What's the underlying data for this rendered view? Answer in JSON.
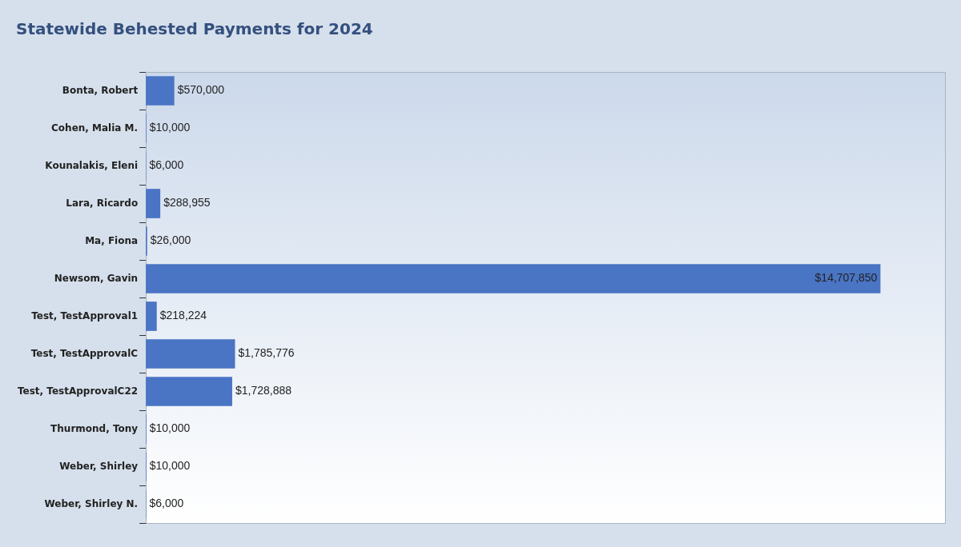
{
  "chart_data": {
    "type": "bar",
    "orientation": "horizontal",
    "title": "Statewide Behested Payments for 2024",
    "categories": [
      "Bonta, Robert",
      "Cohen, Malia M.",
      "Kounalakis, Eleni",
      "Lara, Ricardo",
      "Ma, Fiona",
      "Newsom, Gavin",
      "Test, TestApproval1",
      "Test, TestApprovalC",
      "Test, TestApprovalC22",
      "Thurmond, Tony",
      "Weber, Shirley",
      "Weber, Shirley N."
    ],
    "values": [
      570000,
      10000,
      6000,
      288955,
      26000,
      14707850,
      218224,
      1785776,
      1728888,
      10000,
      10000,
      6000
    ],
    "value_labels": [
      "$570,000",
      "$10,000",
      "$6,000",
      "$288,955",
      "$26,000",
      "$14,707,850",
      "$218,224",
      "$1,785,776",
      "$1,728,888",
      "$10,000",
      "$10,000",
      "$6,000"
    ],
    "color": "#4a74c4",
    "legend": false,
    "tick_labels": "y"
  }
}
